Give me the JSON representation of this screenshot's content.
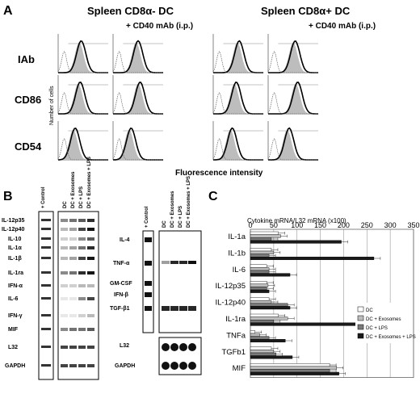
{
  "panelA": {
    "label": "A",
    "header_left": "Spleen CD8α- DC",
    "header_right": "Spleen CD8α+ DC",
    "treatment_left": "+ CD40 mAb (i.p.)",
    "treatment_right": "+ CD40 mAb (i.p.)",
    "rows": [
      "IAb",
      "CD86",
      "CD54"
    ],
    "y_axis_label": "Number of cells",
    "x_axis_label": "Fluorescence intensity"
  },
  "panelB": {
    "label": "B",
    "left_gel": {
      "row_labels": [
        "IL-12p35",
        "IL-12p40",
        "IL-10",
        "IL-1α",
        "IL-1β",
        "IL-1ra",
        "IFN-α",
        "IL-6",
        "IFN-γ",
        "MIF",
        "L32",
        "GAPDH"
      ],
      "control_label": "+ Control",
      "lane_labels": [
        "DC",
        "DC + Exosomes",
        "DC + LPS",
        "DC + Exosomes + LPS"
      ]
    },
    "right_gel": {
      "row_labels": [
        "IL-4",
        "TNF-α",
        "GM-CSF",
        "IFN-β",
        "TGF-β1"
      ],
      "bottom_labels": [
        "L32",
        "GAPDH"
      ],
      "control_label": "+ Control",
      "lane_labels": [
        "DC",
        "DC + Exosomes",
        "DC + LPS",
        "DC + Exosomes + LPS"
      ]
    }
  },
  "panelC": {
    "label": "C",
    "colors": {
      "DC": "#ffffff",
      "DC + Exosomes": "#bdbdbd",
      "DC + LPS": "#7a7a7a",
      "DC + Exosomes + LPS": "#1a1a1a"
    }
  },
  "chart_data": {
    "type": "bar",
    "orientation": "horizontal",
    "title": "Cytokine mRNA/L32 mRNA (x100)",
    "categories": [
      "IL-1a",
      "IL-1b",
      "IL-6",
      "IL-12p35",
      "IL-12p40",
      "IL-1ra",
      "TNFa",
      "TGFb1",
      "MIF"
    ],
    "xlim": [
      0,
      350
    ],
    "xticks": [
      0,
      50,
      100,
      150,
      200,
      250,
      300,
      350
    ],
    "grid": true,
    "legend_position": "right",
    "series": [
      {
        "name": "DC",
        "values": [
          60,
          45,
          35,
          35,
          40,
          60,
          10,
          45,
          170
        ]
      },
      {
        "name": "DC + Exosomes",
        "values": [
          65,
          50,
          40,
          38,
          45,
          80,
          20,
          50,
          185
        ]
      },
      {
        "name": "DC + LPS",
        "values": [
          45,
          40,
          40,
          35,
          80,
          50,
          40,
          55,
          170
        ]
      },
      {
        "name": "DC + Exosomes + LPS",
        "values": [
          195,
          265,
          85,
          40,
          85,
          245,
          75,
          90,
          190
        ]
      }
    ]
  }
}
